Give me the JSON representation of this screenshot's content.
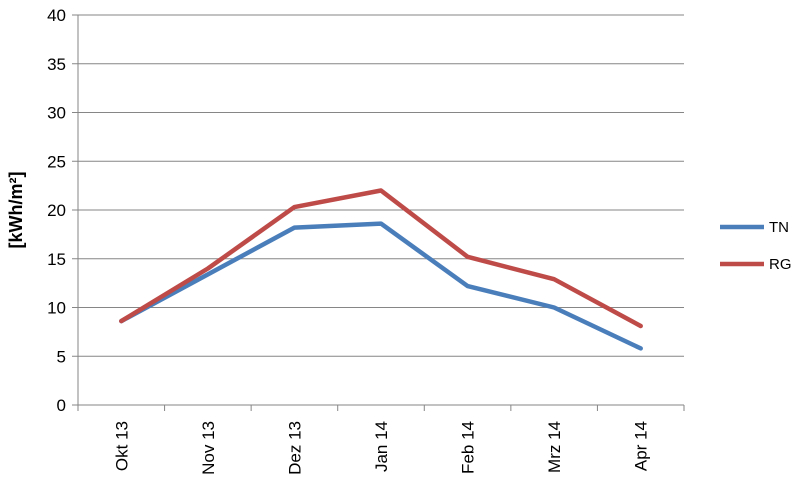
{
  "chart_data": {
    "type": "line",
    "title": "",
    "xlabel": "",
    "ylabel": "[kWh/m²]",
    "categories": [
      "Okt 13",
      "Nov 13",
      "Dez 13",
      "Jan 14",
      "Feb 14",
      "Mrz 14",
      "Apr 14"
    ],
    "ylim": [
      0,
      40
    ],
    "yticks": [
      0,
      5,
      10,
      15,
      20,
      25,
      30,
      35,
      40
    ],
    "grid": true,
    "legend_position": "right",
    "series": [
      {
        "name": "TN",
        "color": "#4a7ebb",
        "values": [
          8.6,
          13.4,
          18.2,
          18.6,
          12.2,
          10.0,
          5.8
        ]
      },
      {
        "name": "RG",
        "color": "#be4b48",
        "values": [
          8.6,
          14.0,
          20.3,
          22.0,
          15.2,
          12.9,
          8.1
        ]
      }
    ]
  }
}
